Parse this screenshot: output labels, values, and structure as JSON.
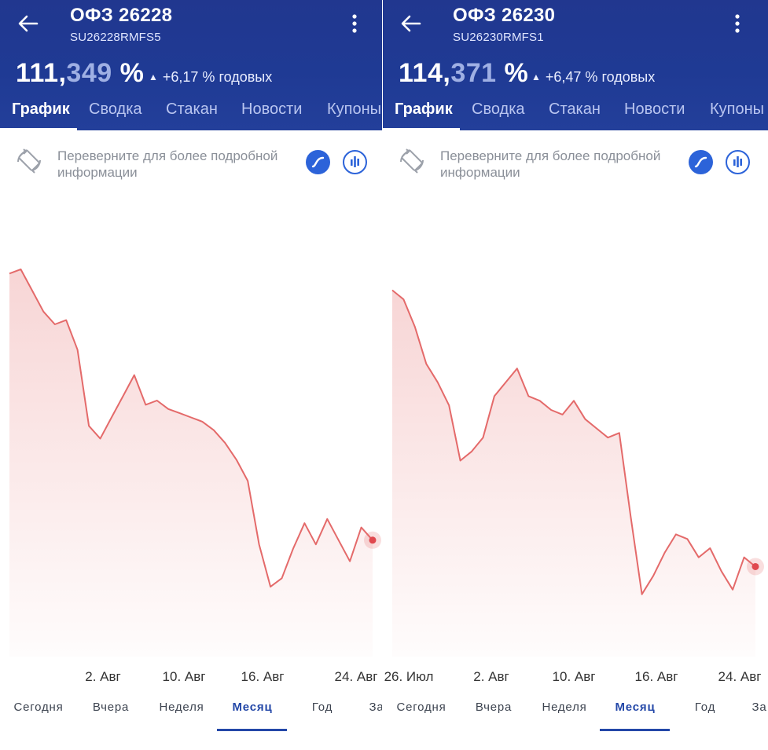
{
  "panels": [
    {
      "title": "ОФЗ 26228",
      "ticker": "SU26228RMFS5",
      "price_main": "111,",
      "price_dim": "349",
      "price_suffix": " %",
      "change_icon": "triangle-up-icon",
      "change": "+6,17 % годовых",
      "tabs": [
        "График",
        "Сводка",
        "Стакан",
        "Новости",
        "Купоны"
      ],
      "active_tab": "График",
      "hint": "Переверните для более подробной информации",
      "x_labels": [
        "2. Авг",
        "10. Авг",
        "16. Авг",
        "24. Авг"
      ],
      "periods": [
        "Сегодня",
        "Вчера",
        "Неделя",
        "Месяц",
        "Год",
        "За"
      ],
      "active_period": "Месяц"
    },
    {
      "title": "ОФЗ 26230",
      "ticker": "SU26230RMFS1",
      "price_main": "114,",
      "price_dim": "371",
      "price_suffix": " %",
      "change_icon": "triangle-up-icon",
      "change": "+6,47 % годовых",
      "tabs": [
        "График",
        "Сводка",
        "Стакан",
        "Новости",
        "Купоны"
      ],
      "active_tab": "График",
      "hint": "Переверните для более подробной информации",
      "x_labels": [
        "26. Июл",
        "2. Авг",
        "10. Авг",
        "16. Авг",
        "24. Авг"
      ],
      "periods": [
        "Сегодня",
        "Вчера",
        "Неделя",
        "Месяц",
        "Год",
        "За"
      ],
      "active_period": "Месяц"
    }
  ],
  "colors": {
    "header": "#21378f",
    "line": "#e46a6a",
    "accent": "#2c63d9",
    "active_period": "#2448a8"
  },
  "chart_data": [
    {
      "type": "area",
      "name": "ОФЗ 26228",
      "x_tick_labels": [
        "2. Авг",
        "10. Авг",
        "16. Авг",
        "24. Авг"
      ],
      "values": [
        115.4,
        115.5,
        115.0,
        114.5,
        114.2,
        114.3,
        113.6,
        111.8,
        111.5,
        112.0,
        112.5,
        113.0,
        112.3,
        112.4,
        112.2,
        112.1,
        112.0,
        111.9,
        111.7,
        111.4,
        111.0,
        110.5,
        109.0,
        108.0,
        108.2,
        108.9,
        109.5,
        109.0,
        109.6,
        109.1,
        108.6,
        109.4,
        109.1
      ]
    },
    {
      "type": "area",
      "name": "ОФЗ 26230",
      "x_tick_labels": [
        "26. Июл",
        "2. Авг",
        "10. Авг",
        "16. Авг",
        "24. Авг"
      ],
      "values": [
        118.6,
        118.4,
        117.8,
        117.0,
        116.6,
        116.1,
        114.9,
        115.1,
        115.4,
        116.3,
        116.6,
        116.9,
        116.3,
        116.2,
        116.0,
        115.9,
        116.2,
        115.8,
        115.6,
        115.4,
        115.5,
        113.7,
        112.0,
        112.4,
        112.9,
        113.3,
        113.2,
        112.8,
        113.0,
        112.5,
        112.1,
        112.8,
        112.6
      ]
    }
  ]
}
